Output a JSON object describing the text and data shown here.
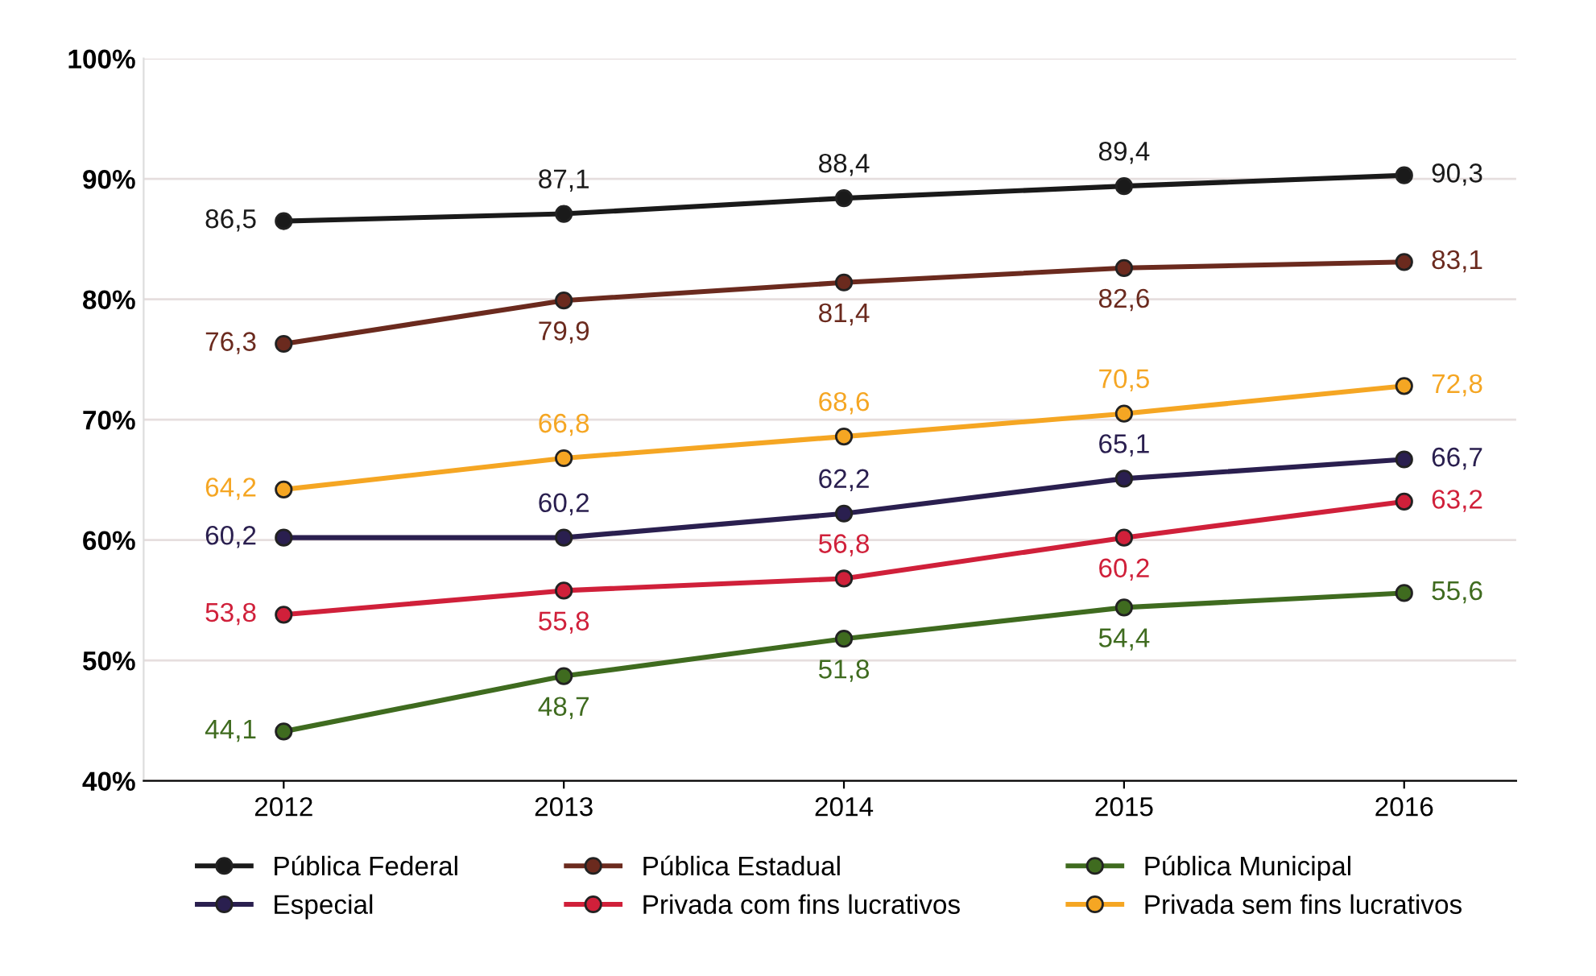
{
  "chart_data": {
    "type": "line",
    "categories": [
      "2012",
      "2013",
      "2014",
      "2015",
      "2016"
    ],
    "series": [
      {
        "name": "Pública Federal",
        "color": "#1a1a1a",
        "values": [
          86.5,
          87.1,
          88.4,
          89.4,
          90.3
        ],
        "value_labels": [
          "86,5",
          "87,1",
          "88,4",
          "89,4",
          "90,3"
        ]
      },
      {
        "name": "Pública Estadual",
        "color": "#6b2a1e",
        "values": [
          76.3,
          79.9,
          81.4,
          82.6,
          83.1
        ],
        "value_labels": [
          "76,3",
          "79,9",
          "81,4",
          "82,6",
          "83,1"
        ]
      },
      {
        "name": "Pública Municipal",
        "color": "#3f6b1f",
        "values": [
          44.1,
          48.7,
          51.8,
          54.4,
          55.6
        ],
        "value_labels": [
          "44,1",
          "48,7",
          "51,8",
          "54,4",
          "55,6"
        ]
      },
      {
        "name": "Especial",
        "color": "#2a1f4f",
        "values": [
          60.2,
          60.2,
          62.2,
          65.1,
          66.7
        ],
        "value_labels": [
          "60,2",
          "60,2",
          "62,2",
          "65,1",
          "66,7"
        ]
      },
      {
        "name": "Privada com fins lucrativos",
        "color": "#d0203a",
        "values": [
          53.8,
          55.8,
          56.8,
          60.2,
          63.2
        ],
        "value_labels": [
          "53,8",
          "55,8",
          "56,8",
          "60,2",
          "63,2"
        ]
      },
      {
        "name": "Privada sem fins lucrativos",
        "color": "#f5a623",
        "values": [
          64.2,
          66.8,
          68.6,
          70.5,
          72.8
        ],
        "value_labels": [
          "64,2",
          "66,8",
          "68,6",
          "70,5",
          "72,8"
        ]
      }
    ],
    "ylim": [
      40,
      100
    ],
    "yticks": [
      {
        "value": 40,
        "label": "40%"
      },
      {
        "value": 50,
        "label": "50%"
      },
      {
        "value": 60,
        "label": "60%"
      },
      {
        "value": 70,
        "label": "70%"
      },
      {
        "value": 80,
        "label": "80%"
      },
      {
        "value": 90,
        "label": "90%"
      },
      {
        "value": 100,
        "label": "100%"
      }
    ],
    "grid": "y",
    "legend": "bottom",
    "marker": "circle",
    "line_style": "solid"
  }
}
